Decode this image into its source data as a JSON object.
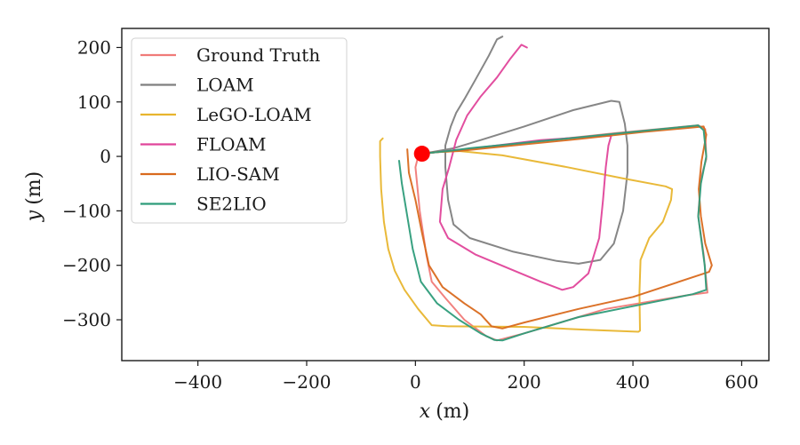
{
  "chart_data": {
    "type": "line",
    "xlabel_var": "x",
    "xlabel_unit": "(m)",
    "ylabel_var": "y",
    "ylabel_unit": "(m)",
    "xlim": [
      -540,
      650
    ],
    "ylim": [
      -375,
      235
    ],
    "xticks": [
      {
        "value": -400,
        "label": "−400"
      },
      {
        "value": -200,
        "label": "−200"
      },
      {
        "value": 0,
        "label": "0"
      },
      {
        "value": 200,
        "label": "200"
      },
      {
        "value": 400,
        "label": "400"
      },
      {
        "value": 600,
        "label": "600"
      }
    ],
    "yticks": [
      {
        "value": 200,
        "label": "200"
      },
      {
        "value": 100,
        "label": "100"
      },
      {
        "value": 0,
        "label": "0"
      },
      {
        "value": -100,
        "label": "−100"
      },
      {
        "value": -200,
        "label": "−200"
      },
      {
        "value": -300,
        "label": "−300"
      }
    ],
    "grid": false,
    "legend_position": "top-left",
    "start_marker": {
      "x": 12,
      "y": 5,
      "color": "#ff0000"
    },
    "series": [
      {
        "name": "Ground Truth",
        "color": "#f07a78",
        "points": [
          [
            12,
            5
          ],
          [
            60,
            10
          ],
          [
            200,
            25
          ],
          [
            370,
            43
          ],
          [
            520,
            57
          ],
          [
            533,
            50
          ],
          [
            535,
            -5
          ],
          [
            525,
            -40
          ],
          [
            520,
            -110
          ],
          [
            530,
            -180
          ],
          [
            537,
            -250
          ],
          [
            500,
            -255
          ],
          [
            350,
            -280
          ],
          [
            200,
            -325
          ],
          [
            150,
            -338
          ],
          [
            130,
            -330
          ],
          [
            90,
            -300
          ],
          [
            55,
            -260
          ],
          [
            30,
            -230
          ],
          [
            20,
            -180
          ],
          [
            8,
            -100
          ],
          [
            0,
            -20
          ],
          [
            5,
            0
          ],
          [
            12,
            5
          ]
        ]
      },
      {
        "name": "LOAM",
        "color": "#7f7f7f",
        "points": [
          [
            160,
            220
          ],
          [
            150,
            215
          ],
          [
            135,
            185
          ],
          [
            110,
            140
          ],
          [
            90,
            105
          ],
          [
            75,
            80
          ],
          [
            65,
            55
          ],
          [
            55,
            20
          ],
          [
            55,
            -20
          ],
          [
            60,
            -80
          ],
          [
            70,
            -125
          ],
          [
            100,
            -150
          ],
          [
            180,
            -175
          ],
          [
            260,
            -192
          ],
          [
            300,
            -197
          ],
          [
            340,
            -190
          ],
          [
            365,
            -160
          ],
          [
            382,
            -100
          ],
          [
            390,
            -30
          ],
          [
            390,
            20
          ],
          [
            385,
            60
          ],
          [
            375,
            100
          ],
          [
            360,
            102
          ],
          [
            290,
            85
          ],
          [
            200,
            55
          ],
          [
            120,
            30
          ],
          [
            70,
            15
          ],
          [
            30,
            8
          ],
          [
            12,
            5
          ]
        ]
      },
      {
        "name": "LeGO-LOAM",
        "color": "#e8b52e",
        "points": [
          [
            -60,
            33
          ],
          [
            -65,
            28
          ],
          [
            -65,
            0
          ],
          [
            -63,
            -60
          ],
          [
            -58,
            -120
          ],
          [
            -50,
            -170
          ],
          [
            -38,
            -210
          ],
          [
            -20,
            -245
          ],
          [
            5,
            -280
          ],
          [
            30,
            -310
          ],
          [
            60,
            -312
          ],
          [
            200,
            -313
          ],
          [
            310,
            -318
          ],
          [
            410,
            -322
          ],
          [
            413,
            -320
          ],
          [
            412,
            -250
          ],
          [
            414,
            -190
          ],
          [
            430,
            -150
          ],
          [
            455,
            -120
          ],
          [
            470,
            -80
          ],
          [
            472,
            -60
          ],
          [
            460,
            -55
          ],
          [
            380,
            -40
          ],
          [
            280,
            -20
          ],
          [
            160,
            2
          ],
          [
            80,
            10
          ],
          [
            40,
            8
          ],
          [
            12,
            5
          ]
        ]
      },
      {
        "name": "FLOAM",
        "color": "#e0449a",
        "points": [
          [
            205,
            200
          ],
          [
            195,
            205
          ],
          [
            175,
            180
          ],
          [
            150,
            145
          ],
          [
            120,
            110
          ],
          [
            95,
            75
          ],
          [
            75,
            30
          ],
          [
            62,
            -20
          ],
          [
            50,
            -60
          ],
          [
            45,
            -120
          ],
          [
            60,
            -150
          ],
          [
            110,
            -180
          ],
          [
            170,
            -205
          ],
          [
            230,
            -230
          ],
          [
            270,
            -245
          ],
          [
            290,
            -240
          ],
          [
            318,
            -215
          ],
          [
            338,
            -150
          ],
          [
            345,
            -80
          ],
          [
            350,
            -20
          ],
          [
            355,
            20
          ],
          [
            360,
            38
          ],
          [
            320,
            36
          ],
          [
            230,
            30
          ],
          [
            150,
            20
          ],
          [
            80,
            12
          ],
          [
            40,
            8
          ],
          [
            12,
            5
          ]
        ]
      },
      {
        "name": "LIO-SAM",
        "color": "#d96a1e",
        "points": [
          [
            -15,
            13
          ],
          [
            -12,
            -30
          ],
          [
            0,
            -80
          ],
          [
            12,
            -140
          ],
          [
            25,
            -200
          ],
          [
            50,
            -240
          ],
          [
            90,
            -270
          ],
          [
            120,
            -290
          ],
          [
            140,
            -312
          ],
          [
            160,
            -316
          ],
          [
            200,
            -305
          ],
          [
            300,
            -280
          ],
          [
            400,
            -258
          ],
          [
            540,
            -212
          ],
          [
            545,
            -200
          ],
          [
            533,
            -160
          ],
          [
            525,
            -110
          ],
          [
            521,
            -60
          ],
          [
            526,
            -10
          ],
          [
            535,
            40
          ],
          [
            530,
            55
          ],
          [
            420,
            45
          ],
          [
            300,
            32
          ],
          [
            180,
            20
          ],
          [
            80,
            10
          ],
          [
            40,
            8
          ],
          [
            12,
            5
          ]
        ]
      },
      {
        "name": "SE2LIO",
        "color": "#2e9c7a",
        "points": [
          [
            -30,
            -8
          ],
          [
            -25,
            -50
          ],
          [
            -15,
            -110
          ],
          [
            -5,
            -170
          ],
          [
            10,
            -230
          ],
          [
            40,
            -270
          ],
          [
            80,
            -300
          ],
          [
            120,
            -325
          ],
          [
            145,
            -337
          ],
          [
            160,
            -338
          ],
          [
            200,
            -325
          ],
          [
            300,
            -295
          ],
          [
            400,
            -275
          ],
          [
            510,
            -253
          ],
          [
            535,
            -245
          ],
          [
            532,
            -200
          ],
          [
            520,
            -110
          ],
          [
            525,
            -50
          ],
          [
            535,
            0
          ],
          [
            530,
            48
          ],
          [
            520,
            57
          ],
          [
            400,
            45
          ],
          [
            300,
            35
          ],
          [
            200,
            25
          ],
          [
            100,
            15
          ],
          [
            60,
            10
          ],
          [
            12,
            5
          ]
        ]
      }
    ]
  }
}
